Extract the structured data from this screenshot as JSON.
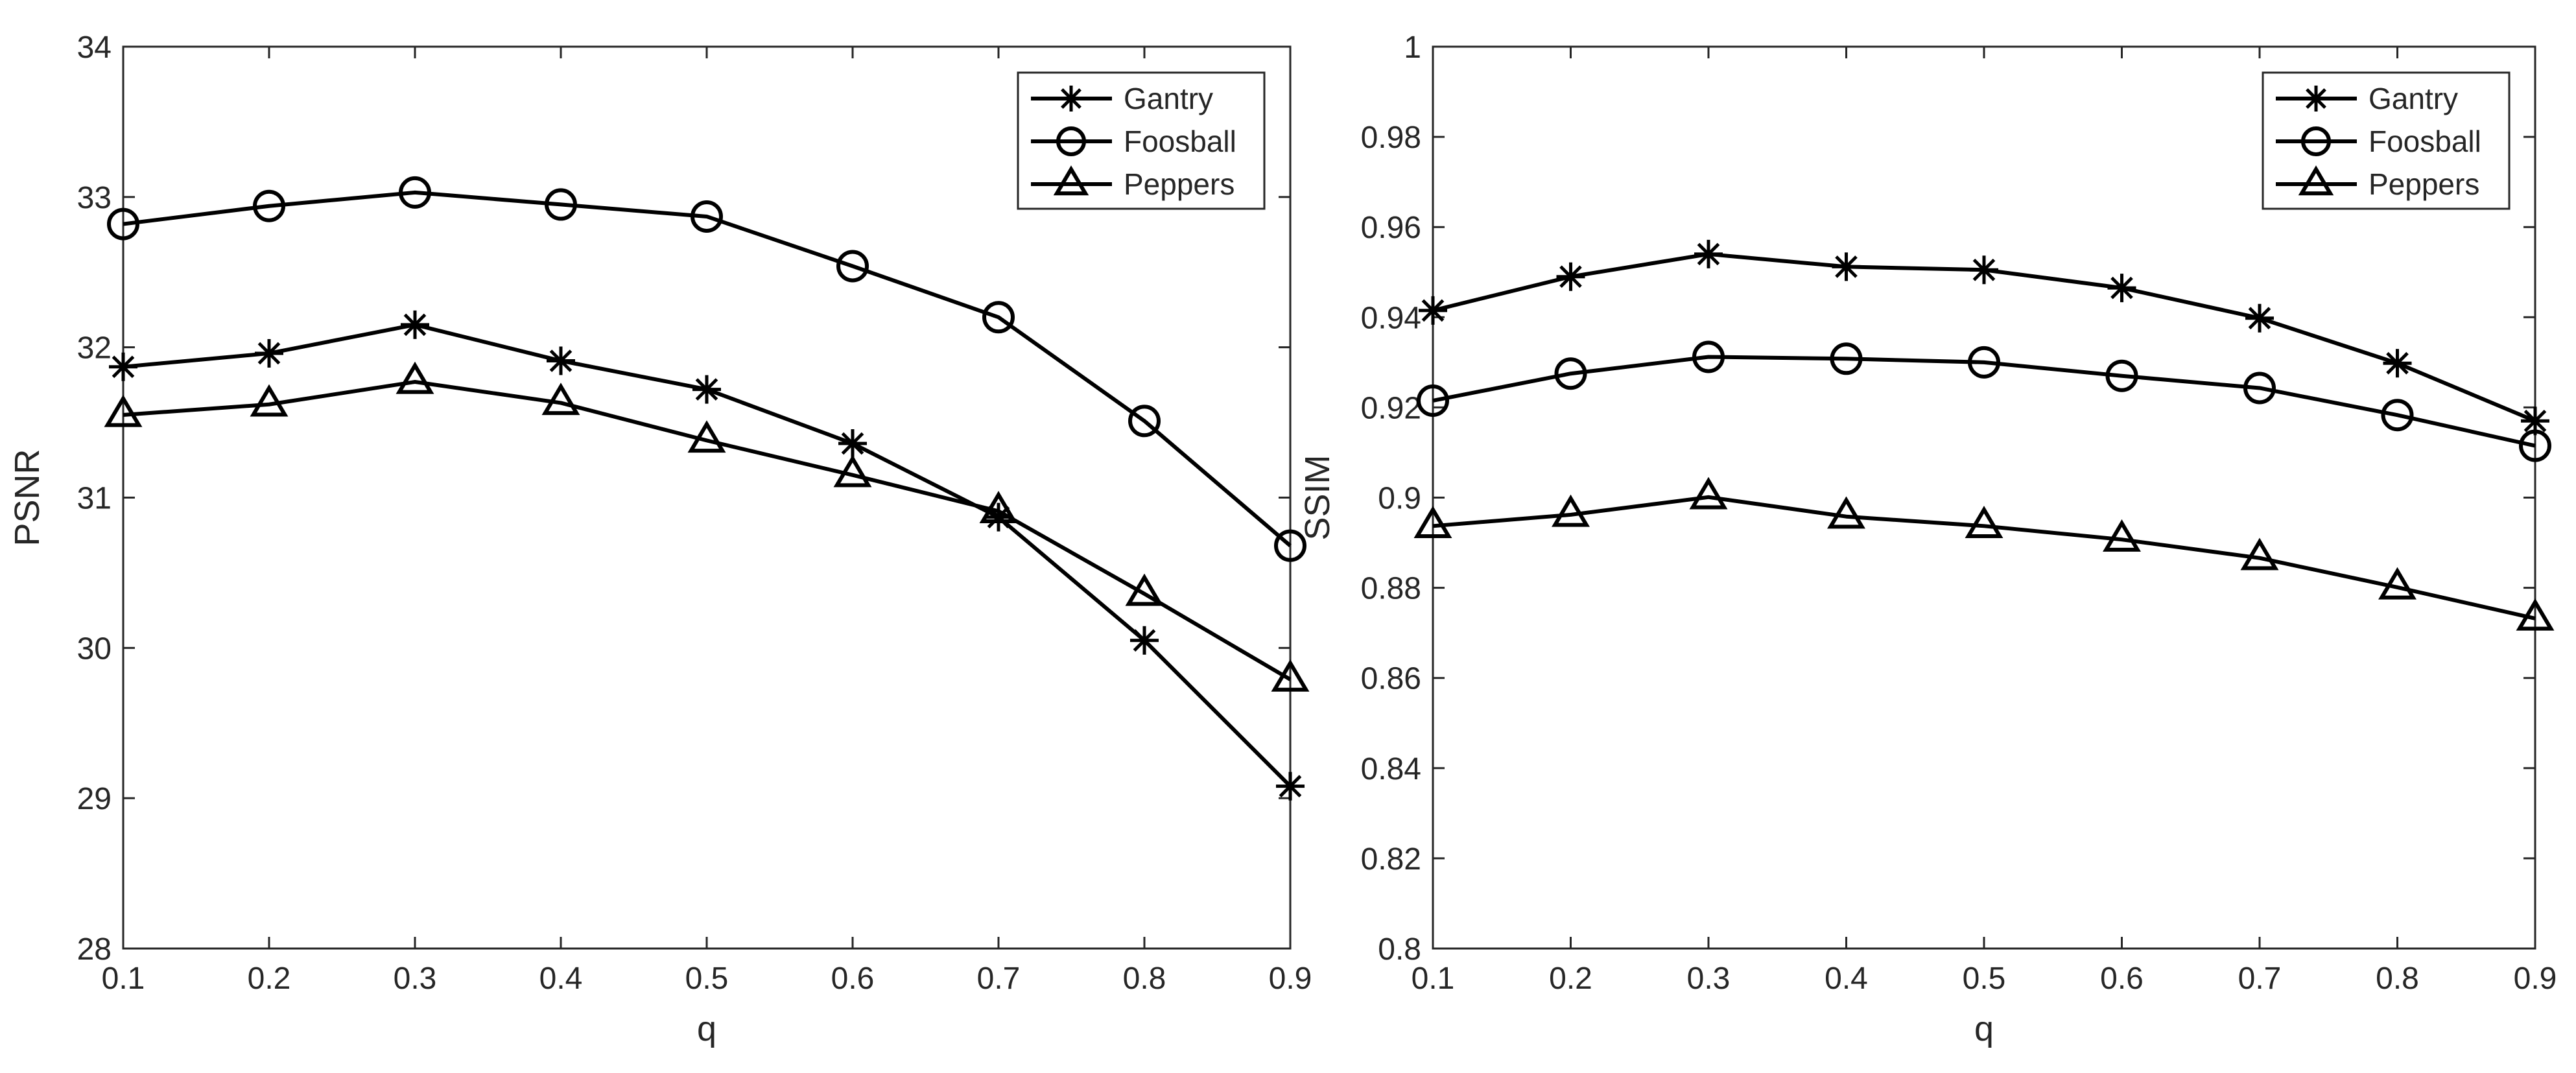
{
  "chart_data": [
    {
      "type": "line",
      "title": "",
      "xlabel": "q",
      "ylabel": "PSNR",
      "x": [
        0.1,
        0.2,
        0.3,
        0.4,
        0.5,
        0.6,
        0.7,
        0.8,
        0.9
      ],
      "xlim": [
        0.1,
        0.9
      ],
      "ylim": [
        28,
        34
      ],
      "xticks": [
        "0.1",
        "0.2",
        "0.3",
        "0.4",
        "0.5",
        "0.6",
        "0.7",
        "0.8",
        "0.9"
      ],
      "yticks": [
        "28",
        "29",
        "30",
        "31",
        "32",
        "33",
        "34"
      ],
      "grid": false,
      "legend_position": "top-right",
      "series": [
        {
          "name": "Gantry",
          "marker": "asterisk",
          "values": [
            31.87,
            31.96,
            32.15,
            31.91,
            31.72,
            31.36,
            30.87,
            30.05,
            29.08
          ]
        },
        {
          "name": "Foosball",
          "marker": "circle",
          "values": [
            32.82,
            32.94,
            33.03,
            32.95,
            32.87,
            32.54,
            32.2,
            31.51,
            30.68
          ]
        },
        {
          "name": "Peppers",
          "marker": "triangle",
          "values": [
            31.55,
            31.62,
            31.77,
            31.63,
            31.38,
            31.15,
            30.91,
            30.36,
            29.79
          ]
        }
      ]
    },
    {
      "type": "line",
      "title": "",
      "xlabel": "q",
      "ylabel": "SSIM",
      "x": [
        0.1,
        0.2,
        0.3,
        0.4,
        0.5,
        0.6,
        0.7,
        0.8,
        0.9
      ],
      "xlim": [
        0.1,
        0.9
      ],
      "ylim": [
        0.8,
        1
      ],
      "xticks": [
        "0.1",
        "0.2",
        "0.3",
        "0.4",
        "0.5",
        "0.6",
        "0.7",
        "0.8",
        "0.9"
      ],
      "yticks": [
        "0.8",
        "0.82",
        "0.84",
        "0.86",
        "0.88",
        "0.9",
        "0.92",
        "0.94",
        "0.96",
        "0.98",
        "1"
      ],
      "grid": false,
      "legend_position": "top-right",
      "series": [
        {
          "name": "Gantry",
          "marker": "asterisk",
          "values": [
            0.9415,
            0.949,
            0.954,
            0.9512,
            0.9505,
            0.9465,
            0.9398,
            0.9298,
            0.917
          ]
        },
        {
          "name": "Foosball",
          "marker": "circle",
          "values": [
            0.9215,
            0.9275,
            0.9312,
            0.9308,
            0.93,
            0.927,
            0.9243,
            0.9183,
            0.9115
          ]
        },
        {
          "name": "Peppers",
          "marker": "triangle",
          "values": [
            0.8937,
            0.8962,
            0.9001,
            0.8958,
            0.8937,
            0.8907,
            0.8866,
            0.8801,
            0.8732
          ]
        }
      ]
    }
  ]
}
